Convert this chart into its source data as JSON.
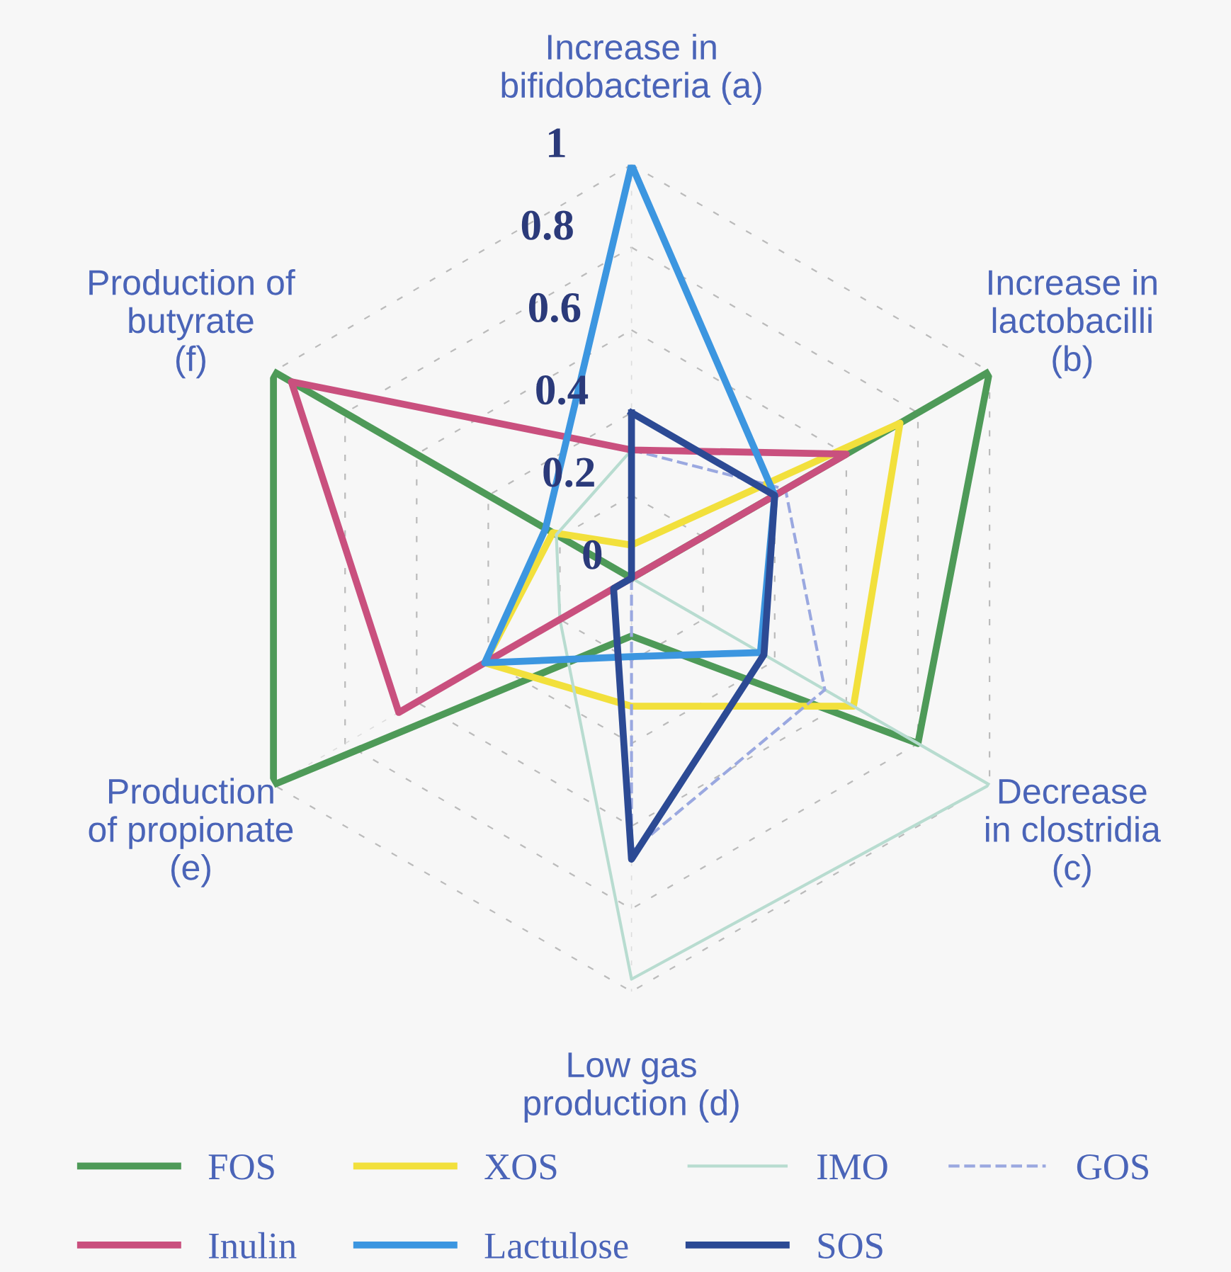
{
  "chart_data": {
    "type": "radar",
    "categories": [
      "Increase in\nbifidobacteria (a)",
      "Increase in\nlactobacilli\n(b)",
      "Decrease\nin clostridia\n(c)",
      "Low gas\nproduction (d)",
      "Production\nof propionate\n(e)",
      "Production of\nbutyrate\n(f)"
    ],
    "ylim": [
      0,
      1
    ],
    "yticks": [
      0,
      0.2,
      0.4,
      0.6,
      0.8,
      1
    ],
    "grid": true,
    "legend": "bottom",
    "marker": "none",
    "series": [
      {
        "name": "FOS",
        "color": "#4e9a58",
        "values": [
          0,
          1,
          0.8,
          0.14,
          1,
          1
        ]
      },
      {
        "name": "XOS",
        "color": "#f2e03c",
        "values": [
          0.08,
          0.75,
          0.62,
          0.31,
          0.41,
          0.22
        ]
      },
      {
        "name": "IMO",
        "color": "#b8dcd0",
        "values": [
          0.31,
          0,
          1,
          0.97,
          0.2,
          0.21
        ]
      },
      {
        "name": "GOS",
        "color": "#9aa8e0",
        "line_style": "dashed",
        "values": [
          0.31,
          0.43,
          0.54,
          0.66,
          0,
          0
        ]
      },
      {
        "name": "Inulin",
        "color": "#c9507e",
        "values": [
          0.31,
          0.6,
          0,
          0,
          0.65,
          0.95
        ]
      },
      {
        "name": "Lactulose",
        "color": "#3c96e0",
        "values": [
          1,
          0.4,
          0.36,
          0.19,
          0.41,
          0.24
        ]
      },
      {
        "name": "SOS",
        "color": "#2c4a94",
        "values": [
          0.4,
          0.4,
          0.37,
          0.68,
          0.05,
          0
        ]
      }
    ]
  }
}
